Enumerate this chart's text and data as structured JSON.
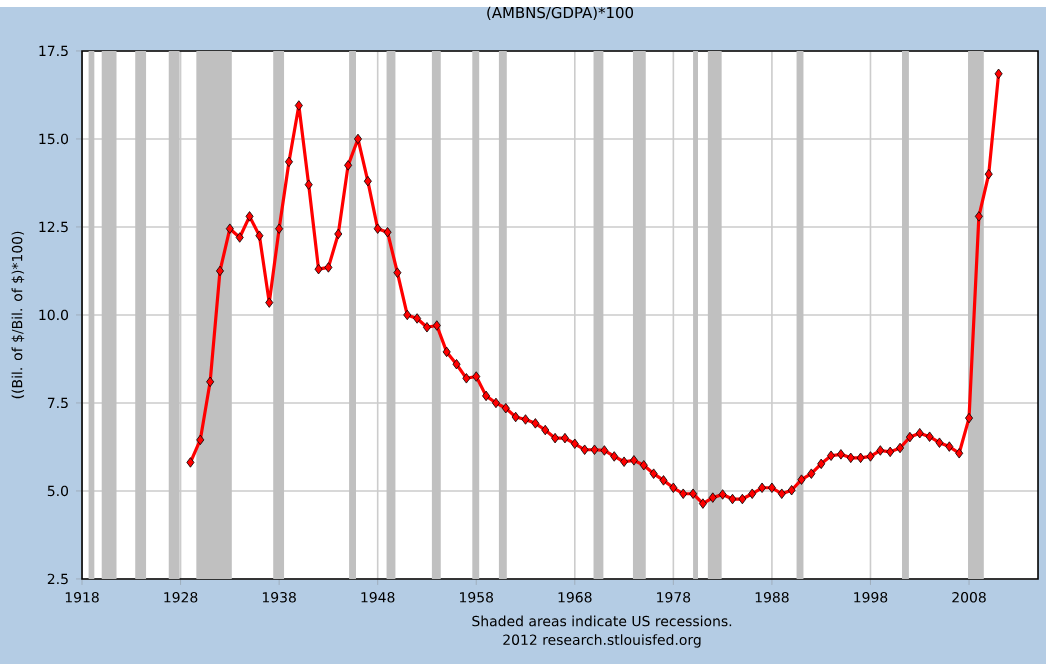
{
  "chart_data": {
    "type": "line",
    "title": "(AMBNS/GDPA)*100",
    "ylabel": "((Bil. of $/Bil. of $)*100)",
    "x": [
      1929,
      1930,
      1931,
      1932,
      1933,
      1934,
      1935,
      1936,
      1937,
      1938,
      1939,
      1940,
      1941,
      1942,
      1943,
      1944,
      1945,
      1946,
      1947,
      1948,
      1949,
      1950,
      1951,
      1952,
      1953,
      1954,
      1955,
      1956,
      1957,
      1958,
      1959,
      1960,
      1961,
      1962,
      1963,
      1964,
      1965,
      1966,
      1967,
      1968,
      1969,
      1970,
      1971,
      1972,
      1973,
      1974,
      1975,
      1976,
      1977,
      1978,
      1979,
      1980,
      1981,
      1982,
      1983,
      1984,
      1985,
      1986,
      1987,
      1988,
      1989,
      1990,
      1991,
      1992,
      1993,
      1994,
      1995,
      1996,
      1997,
      1998,
      1999,
      2000,
      2001,
      2002,
      2003,
      2004,
      2005,
      2006,
      2007,
      2008,
      2009,
      2010,
      2011
    ],
    "series": [
      {
        "color": "#ff0000",
        "values": [
          5.81,
          6.45,
          8.1,
          11.25,
          12.45,
          12.2,
          12.8,
          12.25,
          10.35,
          12.45,
          14.35,
          15.95,
          13.7,
          11.3,
          11.35,
          12.3,
          14.25,
          15.0,
          13.8,
          12.45,
          12.35,
          11.2,
          10.0,
          9.9,
          9.65,
          9.7,
          8.95,
          8.6,
          8.2,
          8.25,
          7.7,
          7.5,
          7.35,
          7.1,
          7.03,
          6.92,
          6.73,
          6.5,
          6.5,
          6.34,
          6.17,
          6.17,
          6.15,
          5.98,
          5.83,
          5.87,
          5.73,
          5.49,
          5.3,
          5.09,
          4.92,
          4.92,
          4.64,
          4.81,
          4.9,
          4.77,
          4.77,
          4.92,
          5.09,
          5.09,
          4.92,
          5.02,
          5.32,
          5.49,
          5.77,
          6.0,
          6.04,
          5.94,
          5.94,
          5.98,
          6.15,
          6.11,
          6.22,
          6.53,
          6.64,
          6.54,
          6.37,
          6.26,
          6.07,
          7.07,
          12.8,
          14.0,
          16.85
        ]
      }
    ],
    "xlim": [
      1918,
      2015
    ],
    "xticks": [
      1918,
      1928,
      1938,
      1948,
      1958,
      1968,
      1978,
      1988,
      1998,
      2008
    ],
    "ylim": [
      2.5,
      17.5
    ],
    "yticks": [
      {
        "value": 2.5,
        "label": "2.5"
      },
      {
        "value": 5,
        "label": "5.0"
      },
      {
        "value": 7.5,
        "label": "7.5"
      },
      {
        "value": 10,
        "label": "10.0"
      },
      {
        "value": 12.5,
        "label": "12.5"
      },
      {
        "value": 15,
        "label": "15.0"
      },
      {
        "value": 17.5,
        "label": "17.5"
      }
    ],
    "grid": true,
    "marker": "diamond",
    "line_style": "solid",
    "bands": [
      {
        "axis": "x",
        "from": 1918.67,
        "to": 1919.25,
        "color": "#c0c0c0"
      },
      {
        "axis": "x",
        "from": 1920.0,
        "to": 1921.5,
        "color": "#c0c0c0"
      },
      {
        "axis": "x",
        "from": 1923.4,
        "to": 1924.5,
        "color": "#c0c0c0"
      },
      {
        "axis": "x",
        "from": 1926.8,
        "to": 1927.9,
        "color": "#c0c0c0"
      },
      {
        "axis": "x",
        "from": 1929.6,
        "to": 1933.2,
        "color": "#c0c0c0"
      },
      {
        "axis": "x",
        "from": 1937.4,
        "to": 1938.5,
        "color": "#c0c0c0"
      },
      {
        "axis": "x",
        "from": 1945.1,
        "to": 1945.8,
        "color": "#c0c0c0"
      },
      {
        "axis": "x",
        "from": 1948.9,
        "to": 1949.8,
        "color": "#c0c0c0"
      },
      {
        "axis": "x",
        "from": 1953.5,
        "to": 1954.4,
        "color": "#c0c0c0"
      },
      {
        "axis": "x",
        "from": 1957.6,
        "to": 1958.3,
        "color": "#c0c0c0"
      },
      {
        "axis": "x",
        "from": 1960.3,
        "to": 1961.1,
        "color": "#c0c0c0"
      },
      {
        "axis": "x",
        "from": 1969.9,
        "to": 1970.9,
        "color": "#c0c0c0"
      },
      {
        "axis": "x",
        "from": 1973.9,
        "to": 1975.2,
        "color": "#c0c0c0"
      },
      {
        "axis": "x",
        "from": 1980.0,
        "to": 1980.5,
        "color": "#c0c0c0"
      },
      {
        "axis": "x",
        "from": 1981.5,
        "to": 1982.9,
        "color": "#c0c0c0"
      },
      {
        "axis": "x",
        "from": 1990.5,
        "to": 1991.2,
        "color": "#c0c0c0"
      },
      {
        "axis": "x",
        "from": 2001.2,
        "to": 2001.9,
        "color": "#c0c0c0"
      },
      {
        "axis": "x",
        "from": 2007.9,
        "to": 2009.5,
        "color": "#c0c0c0"
      }
    ],
    "annotations": [
      "Shaded areas indicate US recessions.",
      "2012 research.stlouisfed.org"
    ]
  }
}
